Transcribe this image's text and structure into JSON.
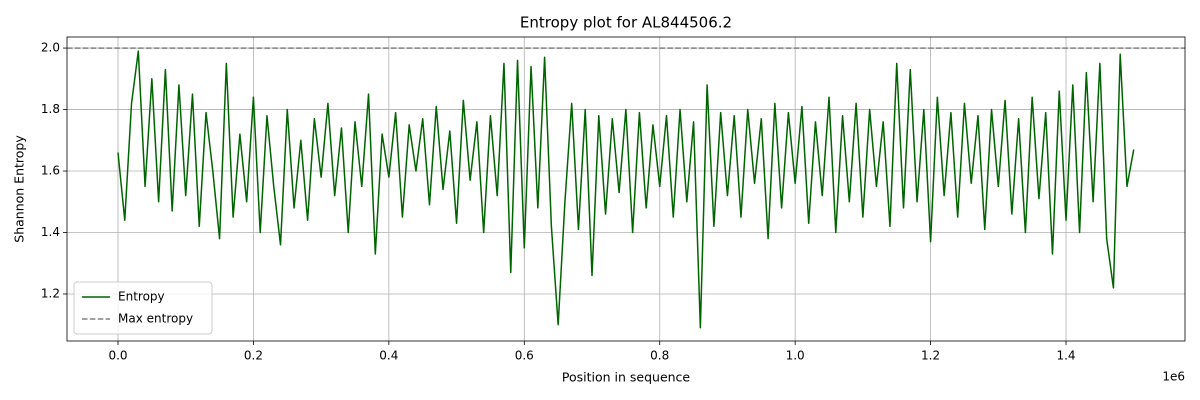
{
  "chart_data": {
    "type": "line",
    "title": "Entropy plot for AL844506.2",
    "x_label": "Position in sequence",
    "y_label": "Shannon Entropy",
    "x_offset_label": "1e6",
    "x": [
      0,
      10000,
      20000,
      30000,
      40000,
      50000,
      60000,
      70000,
      80000,
      90000,
      100000,
      110000,
      120000,
      130000,
      140000,
      150000,
      160000,
      170000,
      180000,
      190000,
      200000,
      210000,
      220000,
      230000,
      240000,
      250000,
      260000,
      270000,
      280000,
      290000,
      300000,
      310000,
      320000,
      330000,
      340000,
      350000,
      360000,
      370000,
      380000,
      390000,
      400000,
      410000,
      420000,
      430000,
      440000,
      450000,
      460000,
      470000,
      480000,
      490000,
      500000,
      510000,
      520000,
      530000,
      540000,
      550000,
      560000,
      570000,
      580000,
      590000,
      600000,
      610000,
      620000,
      630000,
      640000,
      650000,
      660000,
      670000,
      680000,
      690000,
      700000,
      710000,
      720000,
      730000,
      740000,
      750000,
      760000,
      770000,
      780000,
      790000,
      800000,
      810000,
      820000,
      830000,
      840000,
      850000,
      860000,
      870000,
      880000,
      890000,
      900000,
      910000,
      920000,
      930000,
      940000,
      950000,
      960000,
      970000,
      980000,
      990000,
      1000000,
      1010000,
      1020000,
      1030000,
      1040000,
      1050000,
      1060000,
      1070000,
      1080000,
      1090000,
      1100000,
      1110000,
      1120000,
      1130000,
      1140000,
      1150000,
      1160000,
      1170000,
      1180000,
      1190000,
      1200000,
      1210000,
      1220000,
      1230000,
      1240000,
      1250000,
      1260000,
      1270000,
      1280000,
      1290000,
      1300000,
      1310000,
      1320000,
      1330000,
      1340000,
      1350000,
      1360000,
      1370000,
      1380000,
      1390000,
      1400000,
      1410000,
      1420000,
      1430000,
      1440000,
      1450000,
      1460000,
      1470000,
      1480000,
      1490000,
      1500000
    ],
    "series": [
      {
        "name": "Entropy",
        "color": "#006400",
        "values": [
          1.66,
          1.44,
          1.82,
          1.99,
          1.55,
          1.9,
          1.5,
          1.93,
          1.47,
          1.88,
          1.52,
          1.85,
          1.42,
          1.79,
          1.6,
          1.38,
          1.95,
          1.45,
          1.72,
          1.5,
          1.84,
          1.4,
          1.78,
          1.55,
          1.36,
          1.8,
          1.48,
          1.7,
          1.44,
          1.77,
          1.58,
          1.82,
          1.52,
          1.74,
          1.4,
          1.76,
          1.55,
          1.85,
          1.33,
          1.72,
          1.58,
          1.79,
          1.45,
          1.75,
          1.6,
          1.77,
          1.49,
          1.81,
          1.54,
          1.73,
          1.43,
          1.83,
          1.57,
          1.76,
          1.4,
          1.78,
          1.52,
          1.95,
          1.27,
          1.96,
          1.35,
          1.94,
          1.48,
          1.97,
          1.42,
          1.1,
          1.5,
          1.82,
          1.41,
          1.8,
          1.26,
          1.78,
          1.46,
          1.77,
          1.53,
          1.8,
          1.4,
          1.79,
          1.48,
          1.75,
          1.55,
          1.78,
          1.45,
          1.8,
          1.5,
          1.76,
          1.09,
          1.88,
          1.42,
          1.79,
          1.52,
          1.78,
          1.45,
          1.8,
          1.56,
          1.77,
          1.38,
          1.82,
          1.48,
          1.79,
          1.56,
          1.81,
          1.43,
          1.76,
          1.52,
          1.84,
          1.4,
          1.78,
          1.5,
          1.82,
          1.45,
          1.8,
          1.55,
          1.76,
          1.42,
          1.95,
          1.48,
          1.93,
          1.5,
          1.8,
          1.37,
          1.84,
          1.52,
          1.79,
          1.45,
          1.82,
          1.56,
          1.78,
          1.41,
          1.8,
          1.55,
          1.83,
          1.46,
          1.77,
          1.4,
          1.84,
          1.51,
          1.79,
          1.33,
          1.86,
          1.44,
          1.88,
          1.4,
          1.92,
          1.5,
          1.95,
          1.38,
          1.22,
          1.98,
          1.55,
          1.67
        ]
      }
    ],
    "hlines": [
      {
        "name": "Max entropy",
        "value": 2,
        "color": "#808080",
        "dashed": true
      }
    ],
    "xlim": [
      -75300,
      1575700
    ],
    "ylim": [
      1.047,
      2.036
    ],
    "xticks": [
      {
        "value": 0,
        "label": "0.0"
      },
      {
        "value": 200000,
        "label": "0.2"
      },
      {
        "value": 400000,
        "label": "0.4"
      },
      {
        "value": 600000,
        "label": "0.6"
      },
      {
        "value": 800000,
        "label": "0.8"
      },
      {
        "value": 1000000,
        "label": "1.0"
      },
      {
        "value": 1200000,
        "label": "1.2"
      },
      {
        "value": 1400000,
        "label": "1.4"
      }
    ],
    "yticks": [
      1.2,
      1.4,
      1.6,
      1.8,
      {
        "value": 2,
        "label": "2.0"
      }
    ],
    "grid": true,
    "legend": "lower left"
  }
}
